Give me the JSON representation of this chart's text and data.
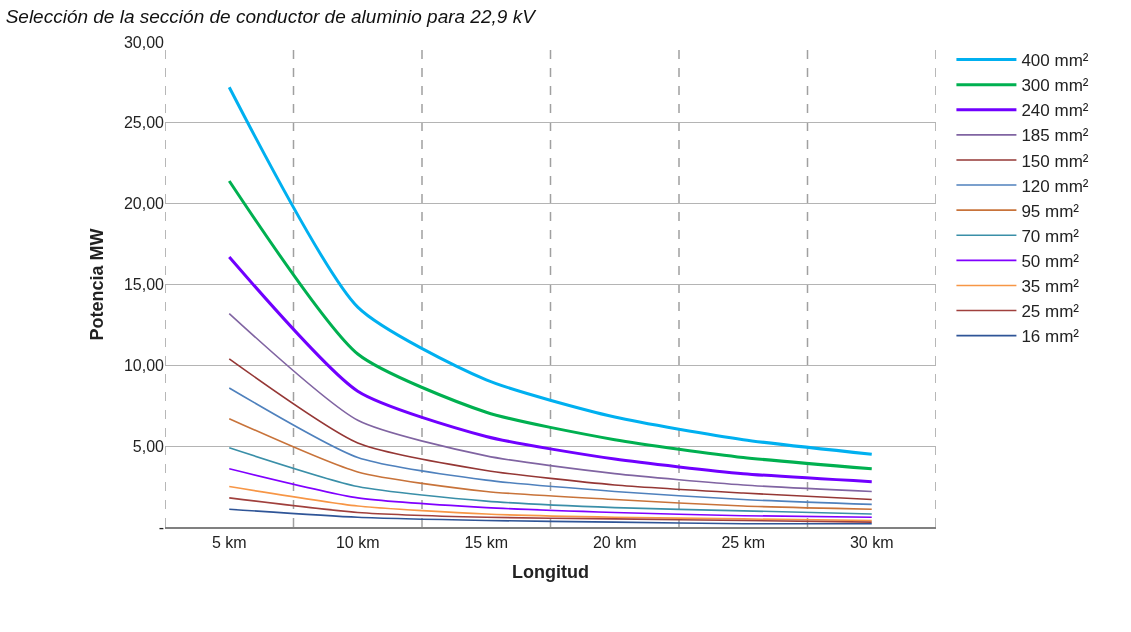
{
  "chart_data": {
    "type": "line",
    "title": "Selección de la sección de conductor de aluminio para 22,9 kV",
    "xlabel": "Longitud",
    "ylabel": "Potencia MW",
    "categories": [
      "5 km",
      "10 km",
      "15 km",
      "20 km",
      "25 km",
      "30 km"
    ],
    "ylim": [
      0,
      30
    ],
    "yticks": [
      {
        "value": 0,
        "label": "-"
      },
      {
        "value": 5,
        "label": "5,00"
      },
      {
        "value": 10,
        "label": "10,00"
      },
      {
        "value": 15,
        "label": "15,00"
      },
      {
        "value": 20,
        "label": "20,00"
      },
      {
        "value": 25,
        "label": "25,00"
      },
      {
        "value": 30,
        "label": "30,00"
      }
    ],
    "grid": true,
    "legend": "right",
    "marker": "none",
    "line_style": "solid",
    "series": [
      {
        "name": "400 mm²",
        "color": "#00b0f0",
        "values": [
          27.2,
          13.6,
          9.1,
          6.8,
          5.4,
          4.5
        ]
      },
      {
        "name": "300 mm²",
        "color": "#00b050",
        "values": [
          21.4,
          10.7,
          7.1,
          5.4,
          4.3,
          3.6
        ]
      },
      {
        "name": "240 mm²",
        "color": "#7000ff",
        "values": [
          16.7,
          8.4,
          5.6,
          4.2,
          3.3,
          2.8
        ]
      },
      {
        "name": "185 mm²",
        "color": "#8064a2",
        "values": [
          13.2,
          6.6,
          4.4,
          3.3,
          2.6,
          2.2
        ]
      },
      {
        "name": "150 mm²",
        "color": "#953735",
        "values": [
          10.4,
          5.2,
          3.5,
          2.6,
          2.1,
          1.7
        ]
      },
      {
        "name": "120 mm²",
        "color": "#4f81bd",
        "values": [
          8.6,
          4.3,
          2.9,
          2.2,
          1.7,
          1.4
        ]
      },
      {
        "name": "95 mm²",
        "color": "#c8733a",
        "values": [
          6.7,
          3.4,
          2.2,
          1.7,
          1.3,
          1.1
        ]
      },
      {
        "name": "70 mm²",
        "color": "#3a8fa8",
        "values": [
          4.9,
          2.5,
          1.6,
          1.2,
          1.0,
          0.8
        ]
      },
      {
        "name": "50 mm²",
        "color": "#8000ff",
        "values": [
          3.6,
          1.8,
          1.2,
          0.9,
          0.7,
          0.6
        ]
      },
      {
        "name": "35 mm²",
        "color": "#f79646",
        "values": [
          2.5,
          1.3,
          0.8,
          0.6,
          0.5,
          0.4
        ]
      },
      {
        "name": "25 mm²",
        "color": "#a0403d",
        "values": [
          1.8,
          0.9,
          0.6,
          0.5,
          0.4,
          0.3
        ]
      },
      {
        "name": "16 mm²",
        "color": "#2f5597",
        "values": [
          1.1,
          0.6,
          0.4,
          0.3,
          0.2,
          0.2
        ]
      }
    ]
  }
}
